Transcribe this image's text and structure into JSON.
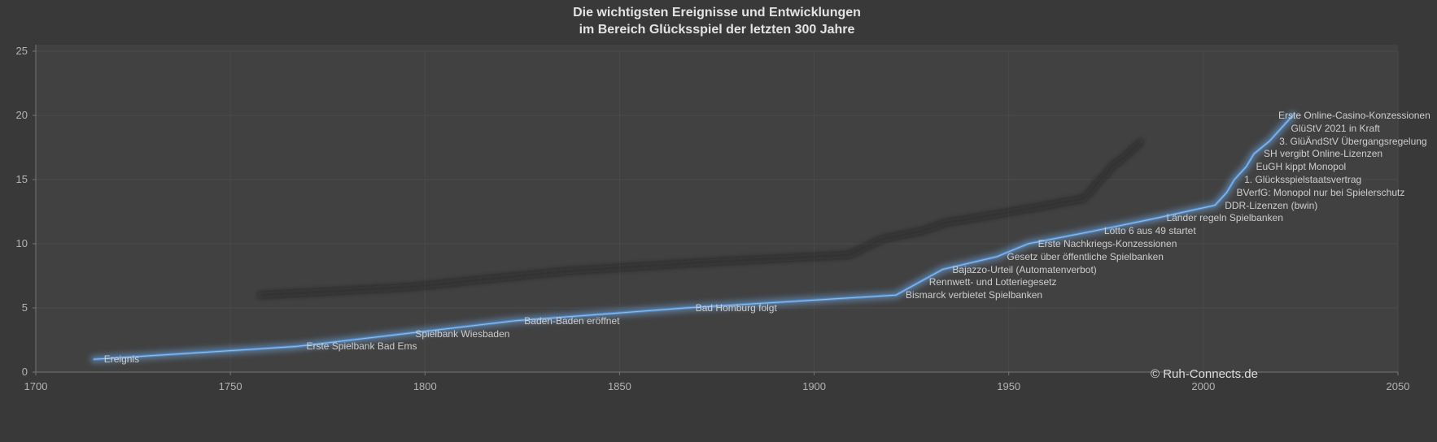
{
  "title": {
    "line1": "Die wichtigsten Ereignisse und Entwicklungen",
    "line2": "im Bereich Glücksspiel der letzten 300 Jahre"
  },
  "footer": {
    "copyright": "© Ruh-Connects.de"
  },
  "chart_data": {
    "type": "line",
    "title": "Die wichtigsten Ereignisse und Entwicklungen im Bereich Glücksspiel der letzten 300 Jahre",
    "xlabel": "",
    "ylabel": "",
    "xlim": [
      1700,
      2050
    ],
    "ylim": [
      0,
      25
    ],
    "x_ticks": [
      1700,
      1750,
      1800,
      1850,
      1900,
      1950,
      2000,
      2050
    ],
    "y_ticks": [
      0,
      5,
      10,
      15,
      20,
      25
    ],
    "grid": true,
    "legend": "none",
    "series": [
      {
        "name": "Ereignis",
        "points": [
          {
            "label": "Ereignis",
            "x": 1715,
            "y": 1
          },
          {
            "label": "Erste Spielbank Bad Ems",
            "x": 1767,
            "y": 2
          },
          {
            "label": "Spielbank Wiesbaden",
            "x": 1795,
            "y": 3
          },
          {
            "label": "Baden-Baden eröffnet",
            "x": 1823,
            "y": 4
          },
          {
            "label": "Bad Homburg folgt",
            "x": 1867,
            "y": 5
          },
          {
            "label": "Bismarck verbietet Spielbanken",
            "x": 1921,
            "y": 6
          },
          {
            "label": "Rennwett- und Lotteriegesetz",
            "x": 1927,
            "y": 7
          },
          {
            "label": "Bajazzo-Urteil (Automatenverbot)",
            "x": 1933,
            "y": 8
          },
          {
            "label": "Gesetz über öffentliche Spielbanken",
            "x": 1947,
            "y": 9
          },
          {
            "label": "Erste Nachkriegs-Konzessionen",
            "x": 1955,
            "y": 10
          },
          {
            "label": "Lotto 6 aus 49 startet",
            "x": 1972,
            "y": 11
          },
          {
            "label": "Länder regeln Spielbanken",
            "x": 1988,
            "y": 12
          },
          {
            "label": "DDR-Lizenzen (bwin)",
            "x": 2003,
            "y": 13
          },
          {
            "label": "BVerfG: Monopol nur bei Spielerschutz",
            "x": 2006,
            "y": 14
          },
          {
            "label": "1. Glücksspielstaatsvertrag",
            "x": 2008,
            "y": 15
          },
          {
            "label": "EuGH kippt Monopol",
            "x": 2011,
            "y": 16
          },
          {
            "label": "SH vergibt Online-Lizenzen",
            "x": 2013,
            "y": 17
          },
          {
            "label": "3. GlüÄndStV Übergangsregelung",
            "x": 2017,
            "y": 18
          },
          {
            "label": "GlüStV 2021 in Kraft",
            "x": 2020,
            "y": 19
          },
          {
            "label": "Erste Online-Casino-Konzessionen",
            "x": 2023,
            "y": 20
          }
        ]
      }
    ],
    "colors": {
      "background": "#393939",
      "plot_background": "#414141",
      "gridline": "#4a4a4a",
      "axis_line": "#757575",
      "tick_text": "#b3b3b3",
      "label_text": "#cdcdcd",
      "title_text": "#e3e3e3",
      "line": "#4e86c6",
      "line_core": "#9ac0e4",
      "line_glow": "#6ea2d8",
      "shadow": "#141414"
    }
  }
}
